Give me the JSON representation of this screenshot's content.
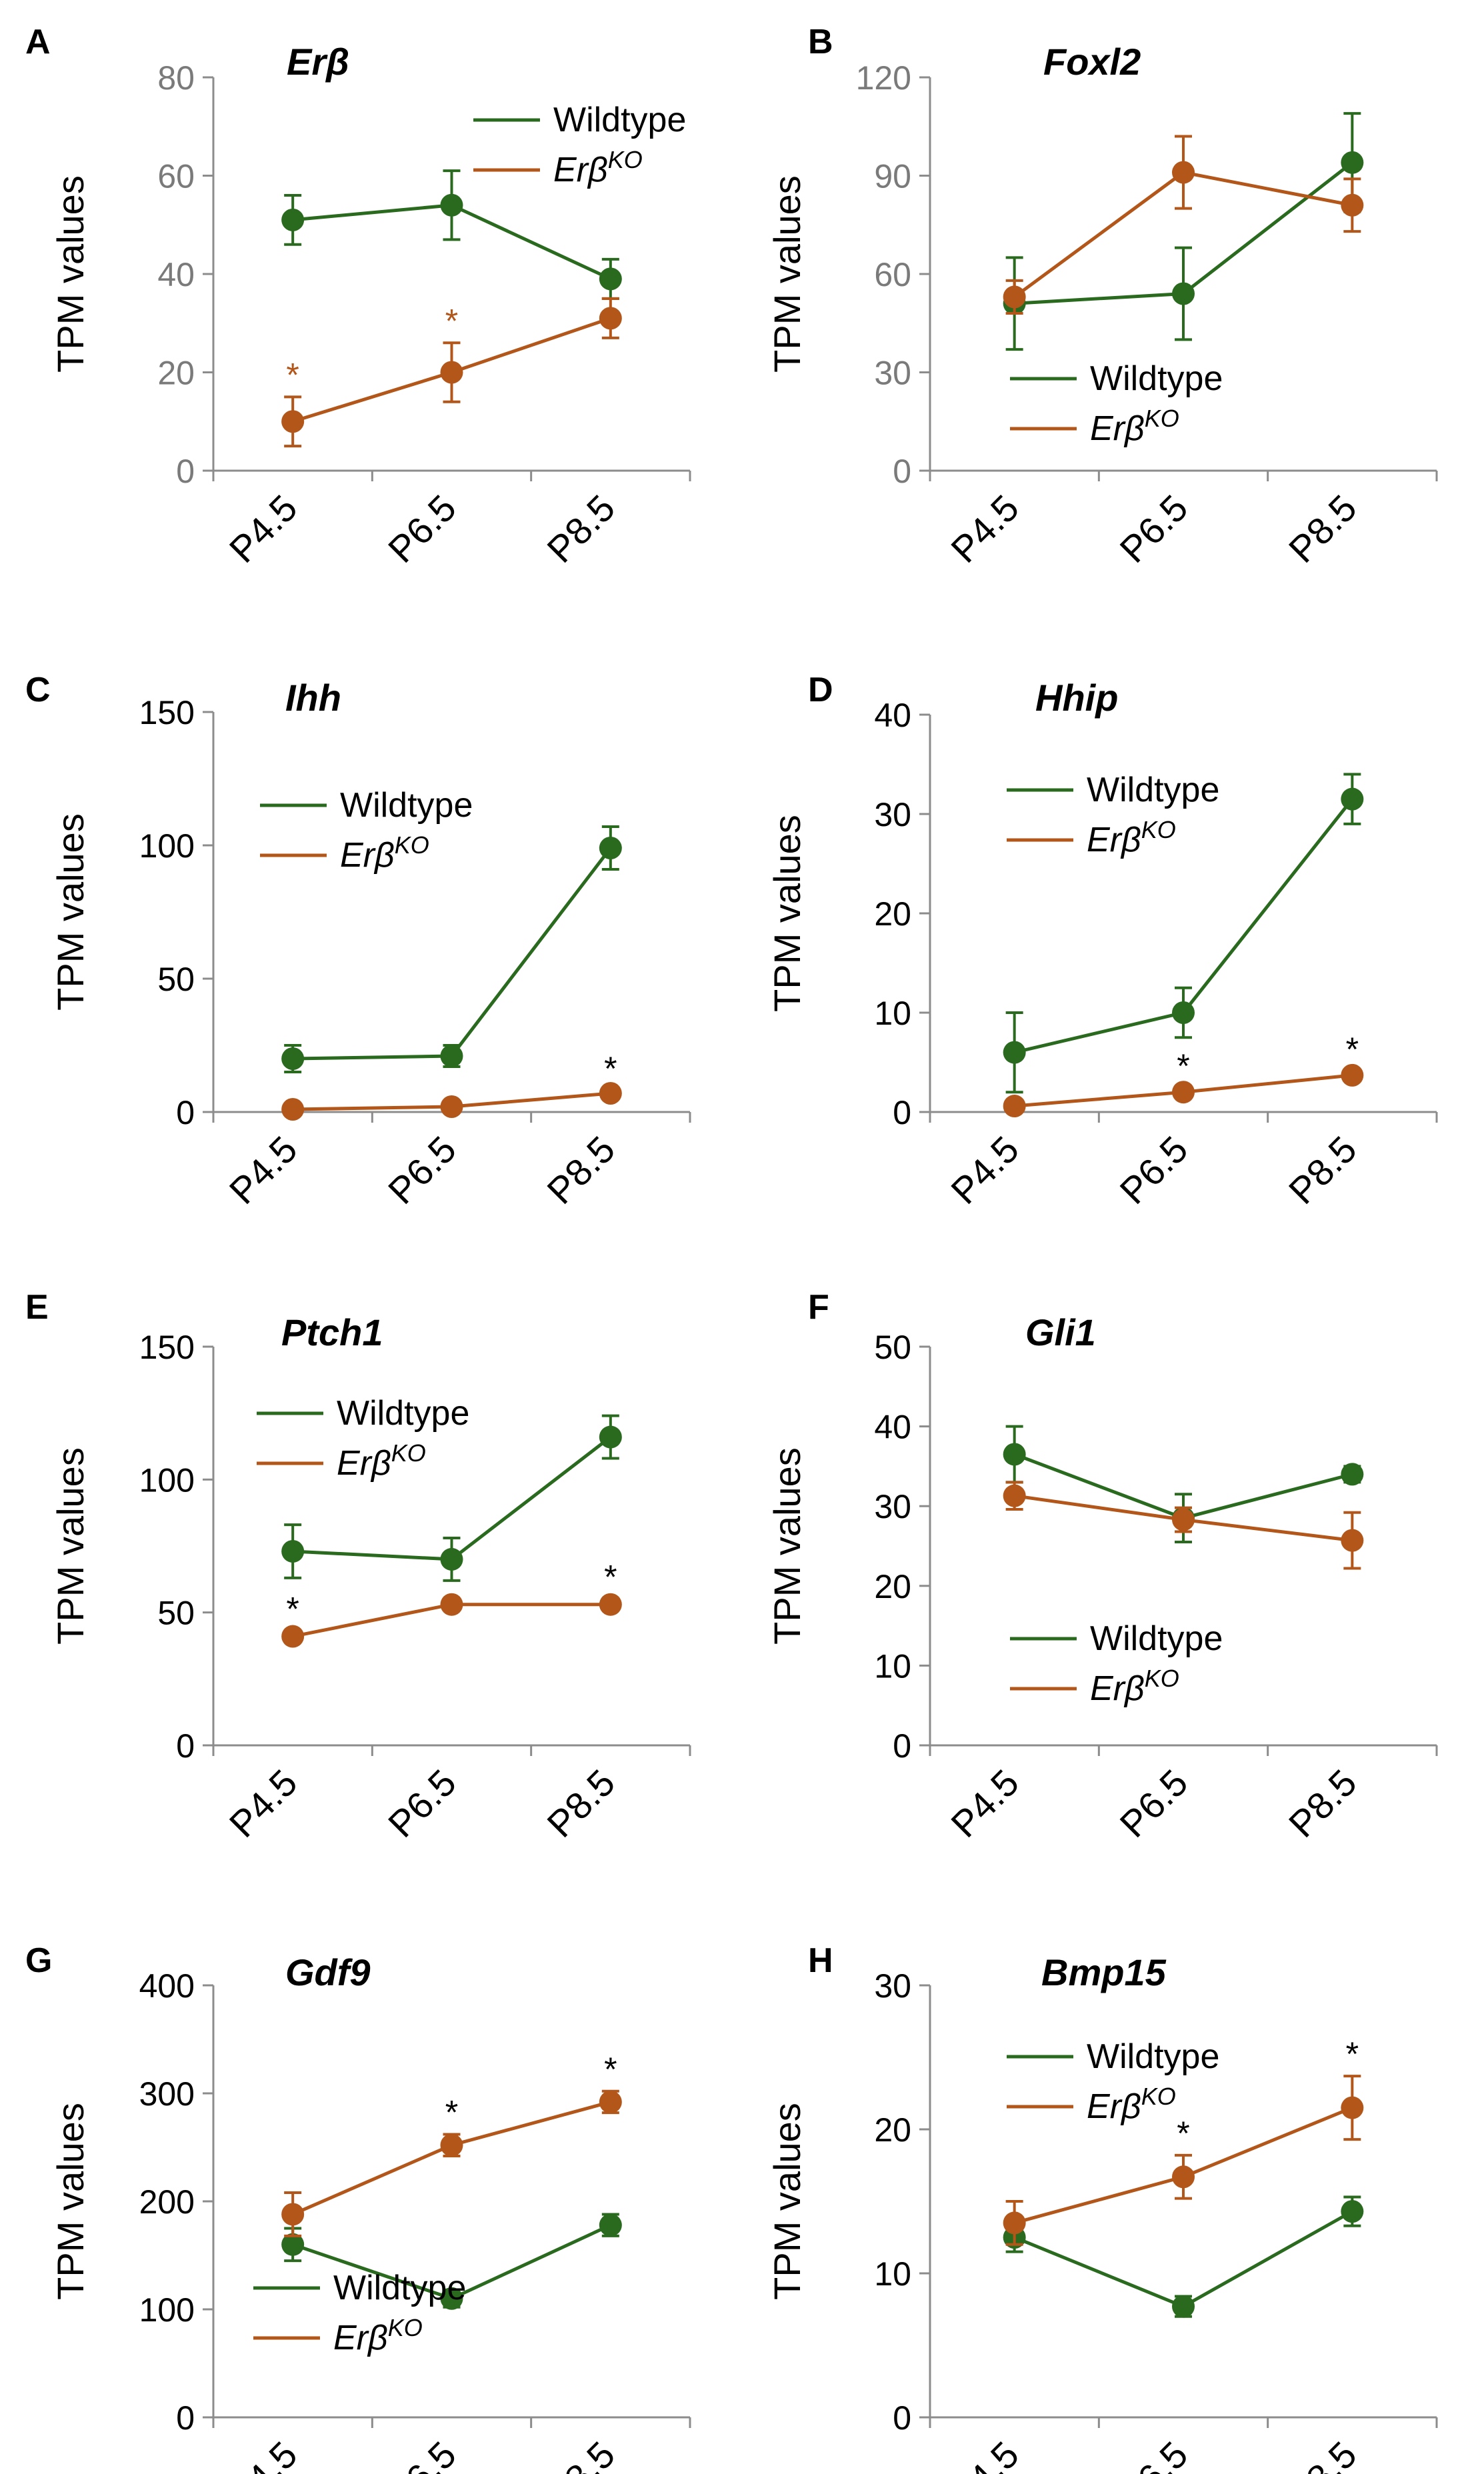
{
  "colors": {
    "wildtype": "#2a6a1f",
    "ko": "#b3561a",
    "axis": "#8c8c8c",
    "text": "#000000",
    "tick_top_row": "#7a7a7a"
  },
  "legend": {
    "wildtype": "Wildtype",
    "ko_base": "Erβ",
    "ko_sup": "KO"
  },
  "categories": [
    "P4.5",
    "P6.5",
    "P8.5"
  ],
  "chart_data": [
    {
      "panel": "A",
      "title": "Erβ",
      "type": "line",
      "ylabel": "TPM   values",
      "ylim": [
        0,
        80
      ],
      "yticks": [
        0,
        20,
        40,
        60,
        80
      ],
      "legend_position": "top-right",
      "series": [
        {
          "name": "Wildtype",
          "values": [
            51,
            54,
            39
          ],
          "errors": [
            5,
            7,
            4
          ]
        },
        {
          "name": "ErβKO",
          "values": [
            10,
            20,
            31
          ],
          "errors": [
            5,
            6,
            4
          ],
          "significant": [
            true,
            true,
            false
          ]
        }
      ]
    },
    {
      "panel": "B",
      "title": "Foxl2",
      "type": "line",
      "ylabel": "TPM   values",
      "ylim": [
        0,
        120
      ],
      "yticks": [
        0,
        30,
        60,
        90,
        120
      ],
      "legend_position": "bottom-left",
      "series": [
        {
          "name": "Wildtype",
          "values": [
            51,
            54,
            94
          ],
          "errors": [
            14,
            14,
            15
          ]
        },
        {
          "name": "ErβKO",
          "values": [
            53,
            91,
            81
          ],
          "errors": [
            5,
            11,
            8
          ],
          "significant": [
            false,
            false,
            false
          ]
        }
      ]
    },
    {
      "panel": "C",
      "title": "Ihh",
      "type": "line",
      "ylabel": "TPM   values",
      "ylim": [
        0,
        150
      ],
      "yticks": [
        0,
        50,
        100,
        150
      ],
      "legend_position": "top-left",
      "series": [
        {
          "name": "Wildtype",
          "values": [
            20,
            21,
            99
          ],
          "errors": [
            5,
            4,
            8
          ]
        },
        {
          "name": "ErβKO",
          "values": [
            1,
            2,
            7
          ],
          "errors": [
            1,
            1,
            1
          ],
          "significant": [
            false,
            false,
            true
          ]
        }
      ]
    },
    {
      "panel": "D",
      "title": "Hhip",
      "type": "line",
      "ylabel": "TPM   values",
      "ylim": [
        0,
        40
      ],
      "yticks": [
        0,
        10,
        20,
        30,
        40
      ],
      "legend_position": "top-left",
      "series": [
        {
          "name": "Wildtype",
          "values": [
            6,
            10,
            31.5
          ],
          "errors": [
            4,
            2.5,
            2.5
          ]
        },
        {
          "name": "ErβKO",
          "values": [
            0.6,
            2,
            3.7
          ],
          "errors": [
            0.3,
            0.4,
            0.4
          ],
          "significant": [
            false,
            true,
            true
          ]
        }
      ]
    },
    {
      "panel": "E",
      "title": "Ptch1",
      "type": "line",
      "ylabel": "TPM   values",
      "ylim": [
        0,
        150
      ],
      "yticks": [
        0,
        50,
        100,
        150
      ],
      "legend_position": "top-left",
      "series": [
        {
          "name": "Wildtype",
          "values": [
            73,
            70,
            116
          ],
          "errors": [
            10,
            8,
            8
          ]
        },
        {
          "name": "ErβKO",
          "values": [
            41,
            53,
            53
          ],
          "errors": [
            2,
            2,
            2
          ],
          "significant": [
            true,
            false,
            true
          ]
        }
      ]
    },
    {
      "panel": "F",
      "title": "Gli1",
      "type": "line",
      "ylabel": "TPM   values",
      "ylim": [
        0,
        50
      ],
      "yticks": [
        0,
        10,
        20,
        30,
        40,
        50
      ],
      "legend_position": "bottom-left",
      "series": [
        {
          "name": "Wildtype",
          "values": [
            36.5,
            28.5,
            34
          ],
          "errors": [
            3.5,
            3,
            1
          ]
        },
        {
          "name": "ErβKO",
          "values": [
            31.3,
            28.3,
            25.7
          ],
          "errors": [
            1.7,
            1.5,
            3.5
          ],
          "significant": [
            false,
            false,
            false
          ]
        }
      ]
    },
    {
      "panel": "G",
      "title": "Gdf9",
      "type": "line",
      "ylabel": "TPM   values",
      "ylim": [
        0,
        400
      ],
      "yticks": [
        0,
        100,
        200,
        300,
        400
      ],
      "legend_position": "bottom-left",
      "series": [
        {
          "name": "Wildtype",
          "values": [
            160,
            110,
            178
          ],
          "errors": [
            15,
            8,
            10
          ]
        },
        {
          "name": "ErβKO",
          "values": [
            188,
            252,
            292
          ],
          "errors": [
            20,
            10,
            10
          ],
          "significant": [
            false,
            true,
            true
          ]
        }
      ]
    },
    {
      "panel": "H",
      "title": "Bmp15",
      "type": "line",
      "ylabel": "TPM   values",
      "ylim": [
        0,
        30
      ],
      "yticks": [
        0,
        10,
        20,
        30
      ],
      "legend_position": "top-left",
      "series": [
        {
          "name": "Wildtype",
          "values": [
            12.5,
            7.7,
            14.3
          ],
          "errors": [
            1,
            0.7,
            1
          ]
        },
        {
          "name": "ErβKO",
          "values": [
            13.5,
            16.7,
            21.5
          ],
          "errors": [
            1.5,
            1.5,
            2.2
          ],
          "significant": [
            false,
            true,
            true
          ]
        }
      ]
    }
  ]
}
